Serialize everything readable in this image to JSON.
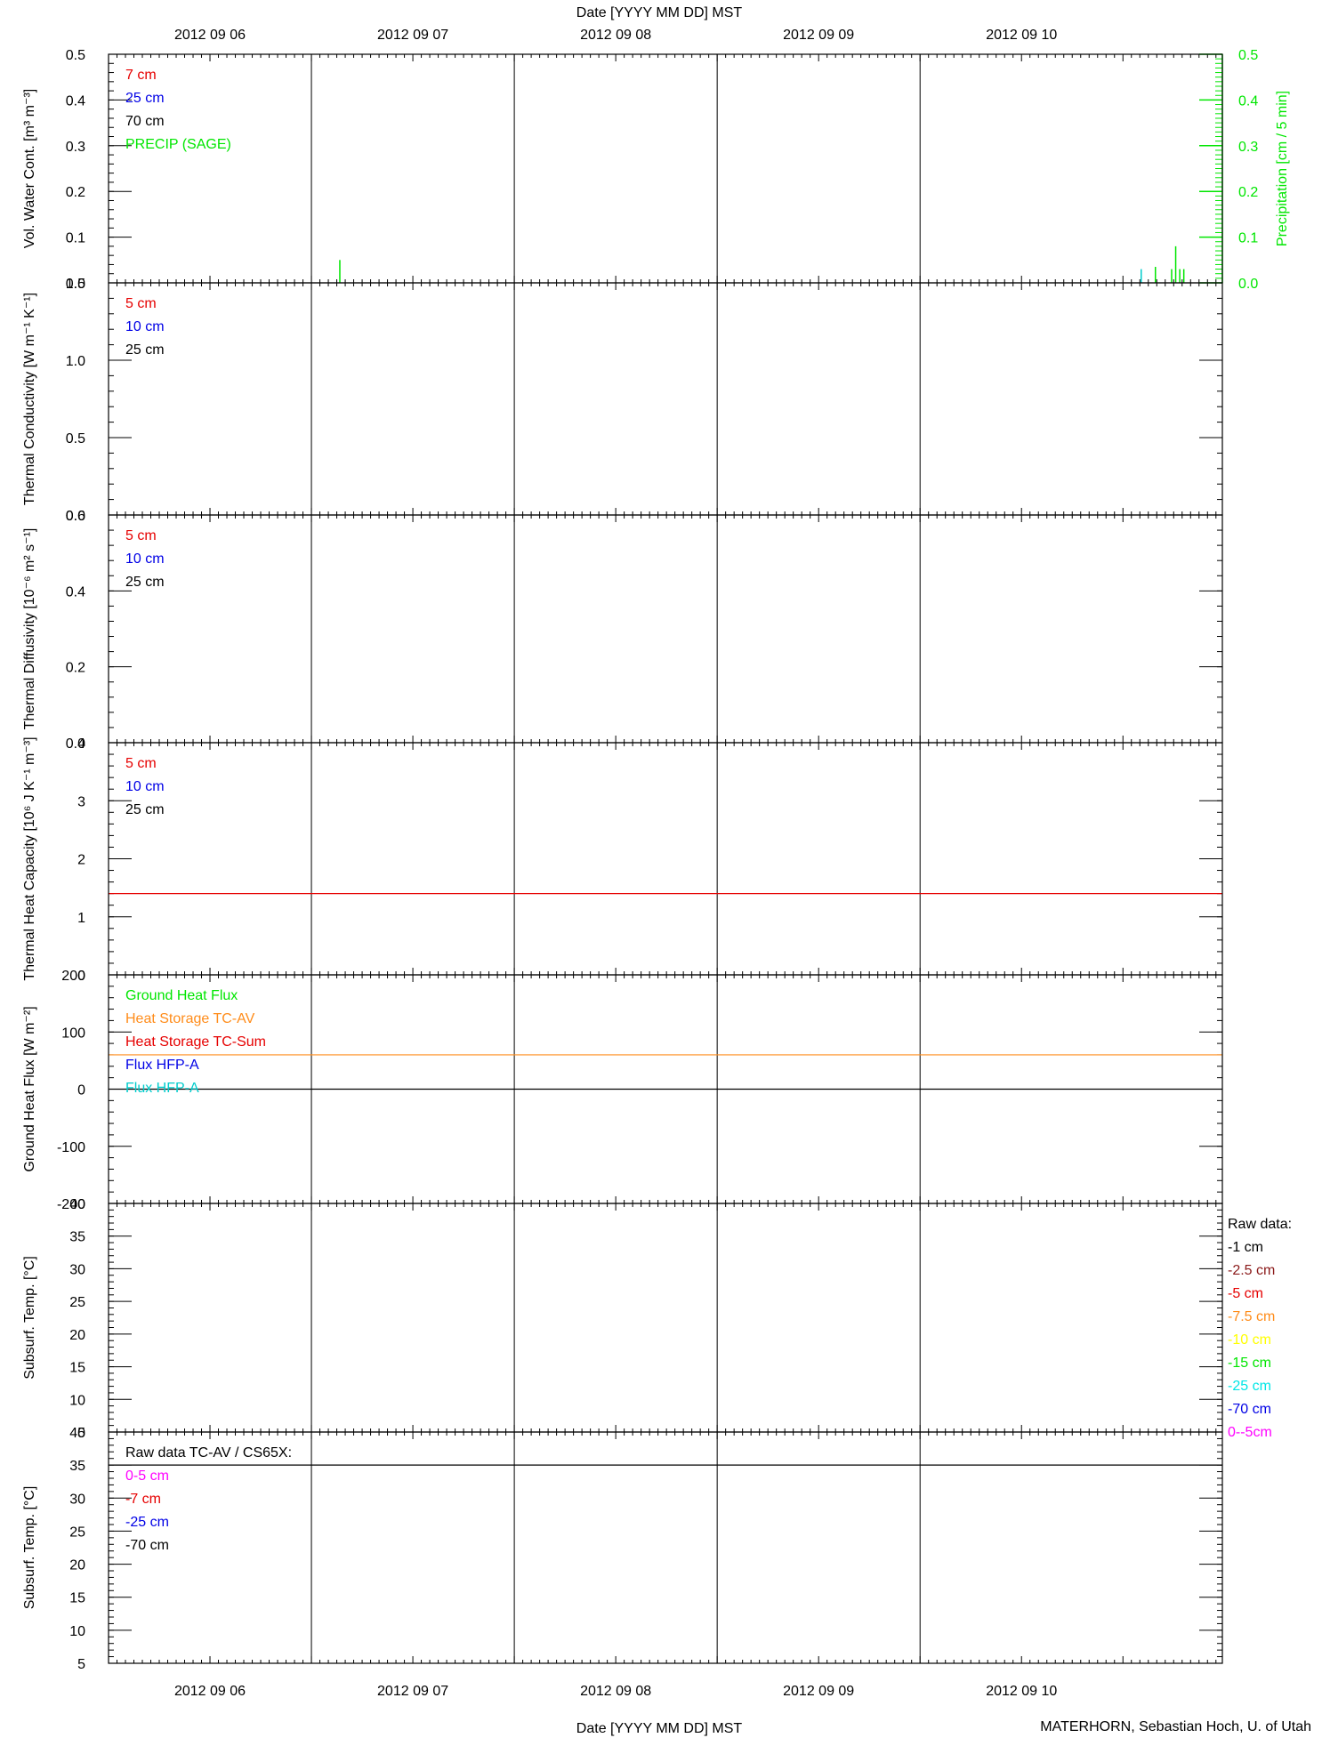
{
  "figure": {
    "top_axis_label": "Date [YYYY MM DD] MST",
    "bottom_axis_label": "Date [YYYY MM DD] MST",
    "credit": "MATERHORN, Sebastian Hoch, U. of Utah",
    "date_ticks": [
      "2012 09 06",
      "2012 09 07",
      "2012 09 08",
      "2012 09 09",
      "2012 09 10"
    ]
  },
  "chart_data": [
    {
      "type": "line",
      "ylabel": "Vol. Water Cont. [m³ m⁻³]",
      "ylim": [
        0,
        0.5
      ],
      "yticks": [
        {
          "v": 0,
          "t": "0.0"
        },
        {
          "v": 0.1,
          "t": "0.1"
        },
        {
          "v": 0.2,
          "t": "0.2"
        },
        {
          "v": 0.3,
          "t": "0.3"
        },
        {
          "v": 0.4,
          "t": "0.4"
        },
        {
          "v": 0.5,
          "t": "0.5"
        }
      ],
      "y2label": "Precipitation [cm / 5 min]",
      "y2lim": [
        0,
        0.5
      ],
      "y2color": "#00e600",
      "y2ticks": [
        {
          "v": 0,
          "t": "0.0"
        },
        {
          "v": 0.1,
          "t": "0.1"
        },
        {
          "v": 0.2,
          "t": "0.2"
        },
        {
          "v": 0.3,
          "t": "0.3"
        },
        {
          "v": 0.4,
          "t": "0.4"
        },
        {
          "v": 0.5,
          "t": "0.5"
        }
      ],
      "legend": [
        {
          "name": "7 cm",
          "color": "#e60000"
        },
        {
          "name": "25 cm",
          "color": "#0000e6"
        },
        {
          "name": "70 cm",
          "color": "#000000"
        },
        {
          "name": "PRECIP (SAGE)",
          "color": "#00e600"
        }
      ],
      "bars": [
        {
          "x": 0.64,
          "y": 0.05,
          "color": "#00e600"
        },
        {
          "x": 4.59,
          "y": 0.03,
          "color": "#00cccc"
        },
        {
          "x": 4.66,
          "y": 0.035,
          "color": "#00e600"
        },
        {
          "x": 4.74,
          "y": 0.03,
          "color": "#00e600"
        },
        {
          "x": 4.76,
          "y": 0.08,
          "color": "#00e600"
        },
        {
          "x": 4.78,
          "y": 0.03,
          "color": "#00e600"
        },
        {
          "x": 4.8,
          "y": 0.03,
          "color": "#00e600"
        }
      ]
    },
    {
      "type": "line",
      "ylabel": "Thermal Conductivity [W m⁻¹ K⁻¹]",
      "ylim": [
        0,
        1.5
      ],
      "yticks": [
        {
          "v": 0,
          "t": "0.0"
        },
        {
          "v": 0.5,
          "t": "0.5"
        },
        {
          "v": 1,
          "t": "1.0"
        },
        {
          "v": 1.5,
          "t": "1.5"
        }
      ],
      "legend": [
        {
          "name": "5 cm",
          "color": "#e60000"
        },
        {
          "name": "10 cm",
          "color": "#0000e6"
        },
        {
          "name": "25 cm",
          "color": "#000000"
        }
      ]
    },
    {
      "type": "line",
      "ylabel": "Thermal Diffusivity [10⁻⁶ m² s⁻¹]",
      "ylim": [
        0,
        0.6
      ],
      "yticks": [
        {
          "v": 0,
          "t": "0.0"
        },
        {
          "v": 0.2,
          "t": "0.2"
        },
        {
          "v": 0.4,
          "t": "0.4"
        },
        {
          "v": 0.6,
          "t": "0.6"
        }
      ],
      "legend": [
        {
          "name": "5 cm",
          "color": "#e60000"
        },
        {
          "name": "10 cm",
          "color": "#0000e6"
        },
        {
          "name": "25 cm",
          "color": "#000000"
        }
      ]
    },
    {
      "type": "line",
      "ylabel": "Thermal Heat Capacity [10⁶ J K⁻¹ m⁻³]",
      "ylim": [
        0,
        4
      ],
      "yticks": [
        {
          "v": 0,
          "t": "0"
        },
        {
          "v": 1,
          "t": "1"
        },
        {
          "v": 2,
          "t": "2"
        },
        {
          "v": 3,
          "t": "3"
        },
        {
          "v": 4,
          "t": "4"
        }
      ],
      "legend": [
        {
          "name": "5 cm",
          "color": "#e60000"
        },
        {
          "name": "10 cm",
          "color": "#0000e6"
        },
        {
          "name": "25 cm",
          "color": "#000000"
        }
      ],
      "hlines": [
        {
          "y": 1.4,
          "color": "#e60000"
        }
      ]
    },
    {
      "type": "line",
      "ylabel": "Ground Heat Flux [W m⁻²]",
      "ylim": [
        -200,
        200
      ],
      "yticks": [
        {
          "v": -200,
          "t": "-200"
        },
        {
          "v": -100,
          "t": "-100"
        },
        {
          "v": 0,
          "t": "0"
        },
        {
          "v": 100,
          "t": "100"
        },
        {
          "v": 200,
          "t": "200"
        }
      ],
      "legend": [
        {
          "name": "Ground Heat Flux",
          "color": "#00e600"
        },
        {
          "name": "Heat Storage TC-AV",
          "color": "#ff8c1a"
        },
        {
          "name": "Heat Storage TC-Sum",
          "color": "#e60000"
        },
        {
          "name": "Flux HFP-A",
          "color": "#0000e6"
        },
        {
          "name": "Flux HFP-A",
          "color": "#00cccc"
        }
      ],
      "hlines": [
        {
          "y": 0,
          "color": "#000000"
        },
        {
          "y": 60,
          "color": "#ff8c1a"
        }
      ]
    },
    {
      "type": "line",
      "ylabel": "Subsurf. Temp. [°C]",
      "ylim": [
        5,
        40
      ],
      "yticks": [
        {
          "v": 5,
          "t": "5"
        },
        {
          "v": 10,
          "t": "10"
        },
        {
          "v": 15,
          "t": "15"
        },
        {
          "v": 20,
          "t": "20"
        },
        {
          "v": 25,
          "t": "25"
        },
        {
          "v": 30,
          "t": "30"
        },
        {
          "v": 35,
          "t": "35"
        },
        {
          "v": 40,
          "t": "40"
        }
      ],
      "legend_title": "Raw data:",
      "legend_outside": true,
      "legend": [
        {
          "name": "-1 cm",
          "color": "#000000"
        },
        {
          "name": "-2.5 cm",
          "color": "#8b1a1a"
        },
        {
          "name": "-5 cm",
          "color": "#e60000"
        },
        {
          "name": "-7.5 cm",
          "color": "#ff8c1a"
        },
        {
          "name": "-10 cm",
          "color": "#ffff00"
        },
        {
          "name": "-15 cm",
          "color": "#00e600"
        },
        {
          "name": "-25 cm",
          "color": "#00e6e6"
        },
        {
          "name": "-70 cm",
          "color": "#0000e6"
        },
        {
          "name": "0--5cm",
          "color": "#ff00ff"
        }
      ]
    },
    {
      "type": "line",
      "ylabel": "Subsurf. Temp. [°C]",
      "ylim": [
        5,
        40
      ],
      "yticks": [
        {
          "v": 5,
          "t": "5"
        },
        {
          "v": 10,
          "t": "10"
        },
        {
          "v": 15,
          "t": "15"
        },
        {
          "v": 20,
          "t": "20"
        },
        {
          "v": 25,
          "t": "25"
        },
        {
          "v": 30,
          "t": "30"
        },
        {
          "v": 35,
          "t": "35"
        },
        {
          "v": 40,
          "t": "40"
        }
      ],
      "legend_title": "Raw data TC-AV / CS65X:",
      "legend": [
        {
          "name": "0-5 cm",
          "color": "#ff00ff"
        },
        {
          "name": "-7 cm",
          "color": "#e60000"
        },
        {
          "name": "-25 cm",
          "color": "#0000e6"
        },
        {
          "name": "-70 cm",
          "color": "#000000"
        }
      ],
      "hlines": [
        {
          "y": 35,
          "color": "#000000"
        }
      ]
    }
  ]
}
